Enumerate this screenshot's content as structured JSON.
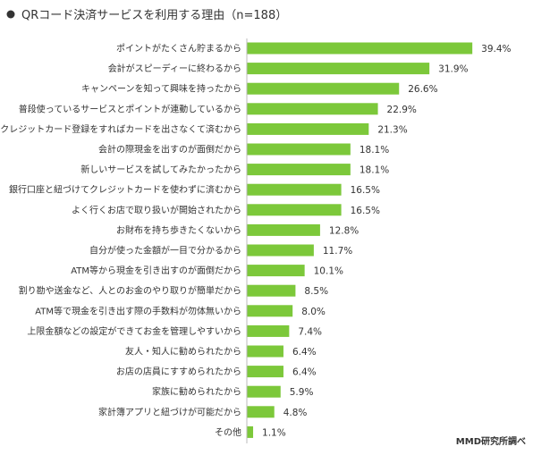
{
  "chart_data": {
    "type": "bar",
    "orientation": "horizontal",
    "title": "QRコード決済サービスを利用する理由（n=188）",
    "source": "MMD研究所調べ",
    "bar_color": "#7cc83a",
    "value_suffix": "%",
    "categories": [
      "ポイントがたくさん貯まるから",
      "会計がスピーディーに終わるから",
      "キャンペーンを知って興味を持ったから",
      "普段使っているサービスとポイントが連動しているから",
      "クレジットカード登録をすればカードを出さなくて済むから",
      "会計の際現金を出すのが面倒だから",
      "新しいサービスを試してみたかったから",
      "銀行口座と紐づけてクレジットカードを使わずに済むから",
      "よく行くお店で取り扱いが開始されたから",
      "お財布を持ち歩きたくないから",
      "自分が使った金額が一目で分かるから",
      "ATM等から現金を引き出すのが面倒だから",
      "割り勘や送金など、人とのお金のやり取りが簡単だから",
      "ATM等で現金を引き出す際の手数料が勿体無いから",
      "上限金額などの設定ができてお金を管理しやすいから",
      "友人・知人に勧められたから",
      "お店の店員にすすめられたから",
      "家族に勧められたから",
      "家計簿アプリと紐づけが可能だから",
      "その他"
    ],
    "values": [
      39.4,
      31.9,
      26.6,
      22.9,
      21.3,
      18.1,
      18.1,
      16.5,
      16.5,
      12.8,
      11.7,
      10.1,
      8.5,
      8.0,
      7.4,
      6.4,
      6.4,
      5.9,
      4.8,
      1.1
    ]
  }
}
